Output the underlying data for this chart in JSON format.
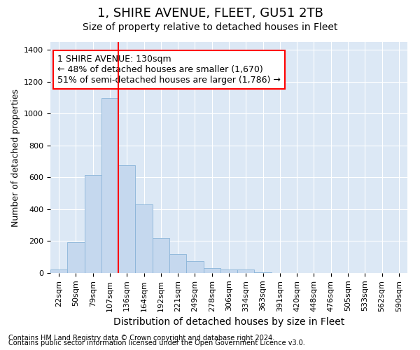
{
  "title1": "1, SHIRE AVENUE, FLEET, GU51 2TB",
  "title2": "Size of property relative to detached houses in Fleet",
  "xlabel": "Distribution of detached houses by size in Fleet",
  "ylabel": "Number of detached properties",
  "categories": [
    "22sqm",
    "50sqm",
    "79sqm",
    "107sqm",
    "136sqm",
    "164sqm",
    "192sqm",
    "221sqm",
    "249sqm",
    "278sqm",
    "306sqm",
    "334sqm",
    "363sqm",
    "391sqm",
    "420sqm",
    "448sqm",
    "476sqm",
    "505sqm",
    "533sqm",
    "562sqm",
    "590sqm"
  ],
  "values": [
    20,
    195,
    615,
    1100,
    675,
    430,
    220,
    120,
    75,
    30,
    20,
    20,
    5,
    2,
    2,
    2,
    2,
    0,
    0,
    0,
    0
  ],
  "bar_color": "#c5d8ee",
  "bar_edge_color": "#8ab4d8",
  "background_color": "#dce8f5",
  "grid_color": "#ffffff",
  "ylim": [
    0,
    1450
  ],
  "yticks": [
    0,
    200,
    400,
    600,
    800,
    1000,
    1200,
    1400
  ],
  "red_line_x": 3.5,
  "annotation_line1": "1 SHIRE AVENUE: 130sqm",
  "annotation_line2": "← 48% of detached houses are smaller (1,670)",
  "annotation_line3": "51% of semi-detached houses are larger (1,786) →",
  "footnote1": "Contains HM Land Registry data © Crown copyright and database right 2024.",
  "footnote2": "Contains public sector information licensed under the Open Government Licence v3.0.",
  "title1_fontsize": 13,
  "title2_fontsize": 10,
  "xlabel_fontsize": 10,
  "ylabel_fontsize": 9,
  "tick_fontsize": 8,
  "annotation_fontsize": 9,
  "footnote_fontsize": 7
}
